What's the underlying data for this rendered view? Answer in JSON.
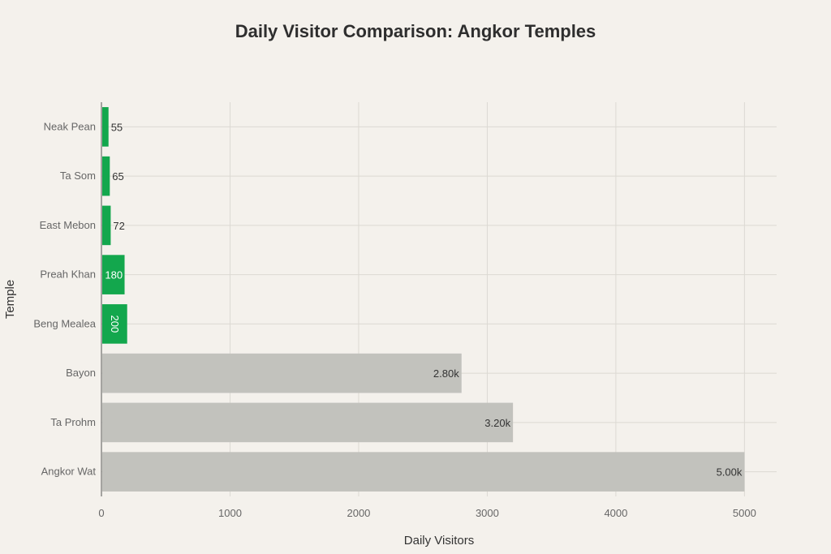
{
  "chart_data": {
    "type": "bar",
    "orientation": "horizontal",
    "title": "Daily Visitor Comparison: Angkor Temples",
    "xlabel": "Daily Visitors",
    "ylabel": "Temple",
    "xlim": [
      0,
      5250
    ],
    "x_ticks": [
      0,
      1000,
      2000,
      3000,
      4000,
      5000
    ],
    "grid": true,
    "categories": [
      "Neak Pean",
      "Ta Som",
      "East Mebon",
      "Preah Khan",
      "Beng Mealea",
      "Bayon",
      "Ta Prohm",
      "Angkor Wat"
    ],
    "values": [
      55,
      65,
      72,
      180,
      200,
      2800,
      3200,
      5000
    ],
    "value_labels": [
      "55",
      "65",
      "72",
      "180",
      "200",
      "2.80k",
      "3.20k",
      "5.00k"
    ],
    "colors": [
      "#13a74d",
      "#13a74d",
      "#13a74d",
      "#13a74d",
      "#13a74d",
      "#c2c2bd",
      "#c2c2bd",
      "#c2c2bd"
    ]
  }
}
